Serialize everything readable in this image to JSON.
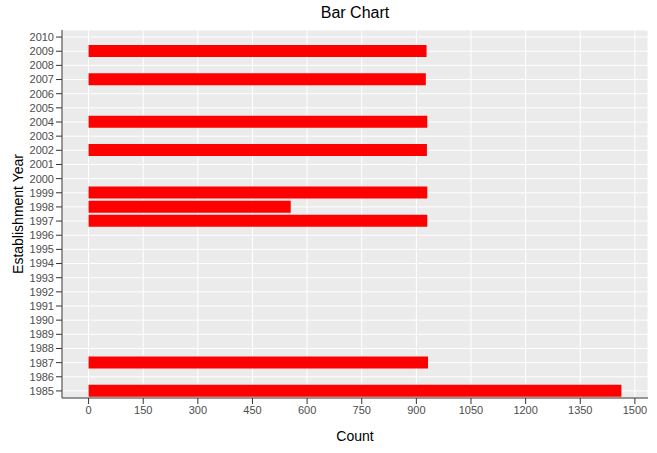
{
  "chart_data": {
    "type": "bar",
    "title": "Bar Chart",
    "x_label": "Count",
    "y_label": "Establishment Year",
    "orientation": "horizontal",
    "categories": [
      "1985",
      "1986",
      "1987",
      "1988",
      "1989",
      "1990",
      "1991",
      "1992",
      "1993",
      "1994",
      "1995",
      "1996",
      "1997",
      "1998",
      "1999",
      "2000",
      "2001",
      "2002",
      "2003",
      "2004",
      "2005",
      "2006",
      "2007",
      "2008",
      "2009",
      "2010"
    ],
    "values": [
      1463,
      null,
      932,
      null,
      null,
      null,
      null,
      null,
      null,
      null,
      null,
      null,
      930,
      555,
      930,
      null,
      null,
      929,
      null,
      930,
      null,
      null,
      926,
      null,
      928,
      null
    ],
    "color": "#FF0000",
    "xlim": [
      -73,
      1536
    ],
    "xticks": [
      0,
      150,
      300,
      450,
      600,
      750,
      900,
      1050,
      1200,
      1350,
      1500
    ],
    "grid": true
  }
}
